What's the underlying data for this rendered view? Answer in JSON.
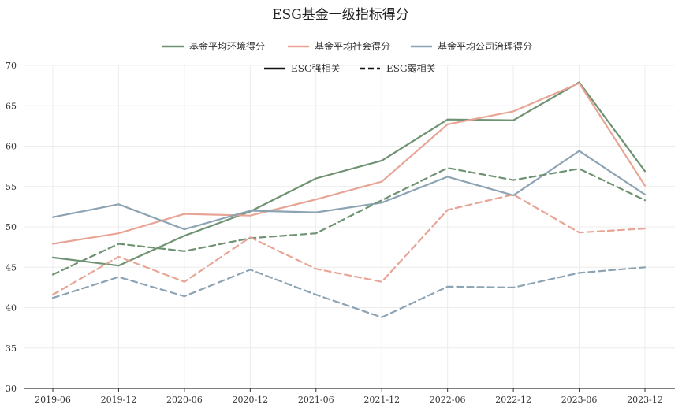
{
  "chart_data": {
    "type": "line",
    "title": "ESG基金一级指标得分",
    "xlabel": "",
    "ylabel": "",
    "ylim": [
      30,
      70
    ],
    "yticks": [
      30,
      35,
      40,
      45,
      50,
      55,
      60,
      65,
      70
    ],
    "grid": true,
    "categories": [
      "2019-06",
      "2019-12",
      "2020-06",
      "2020-12",
      "2021-06",
      "2021-12",
      "2022-06",
      "2022-12",
      "2023-06",
      "2023-12"
    ],
    "legend_position": "top-center",
    "legend_color": [
      {
        "label": "基金平均环境得分",
        "color": "#6e9272"
      },
      {
        "label": "基金平均社会得分",
        "color": "#e8a596"
      },
      {
        "label": "基金平均公司治理得分",
        "color": "#8ca3b4"
      }
    ],
    "legend_style": [
      {
        "label": "ESG强相关",
        "dash": "solid",
        "color": "#111111"
      },
      {
        "label": "ESG弱相关",
        "dash": "dashed",
        "color": "#111111"
      }
    ],
    "series": [
      {
        "group": "环境",
        "style": "solid",
        "color": "#6e9272",
        "values": [
          46.2,
          45.2,
          48.9,
          51.9,
          56.0,
          58.2,
          63.3,
          63.2,
          67.9,
          56.9
        ]
      },
      {
        "group": "社会",
        "style": "solid",
        "color": "#e8a596",
        "values": [
          47.9,
          49.2,
          51.6,
          51.4,
          53.4,
          55.6,
          62.7,
          64.3,
          67.8,
          55.1
        ]
      },
      {
        "group": "公司治理",
        "style": "solid",
        "color": "#8ca3b4",
        "values": [
          51.2,
          52.8,
          49.7,
          52.0,
          51.8,
          53.0,
          56.2,
          53.9,
          59.4,
          54.0
        ]
      },
      {
        "group": "环境",
        "style": "dashed",
        "color": "#6e9272",
        "values": [
          44.1,
          47.9,
          47.0,
          48.6,
          49.2,
          53.3,
          57.3,
          55.8,
          57.2,
          53.3
        ]
      },
      {
        "group": "社会",
        "style": "dashed",
        "color": "#e8a596",
        "values": [
          41.6,
          46.3,
          43.2,
          48.7,
          44.8,
          43.2,
          52.1,
          54.0,
          49.3,
          49.8
        ]
      },
      {
        "group": "公司治理",
        "style": "dashed",
        "color": "#8ca3b4",
        "values": [
          41.2,
          43.8,
          41.4,
          44.7,
          41.6,
          38.8,
          42.6,
          42.5,
          44.3,
          45.0
        ]
      }
    ]
  }
}
